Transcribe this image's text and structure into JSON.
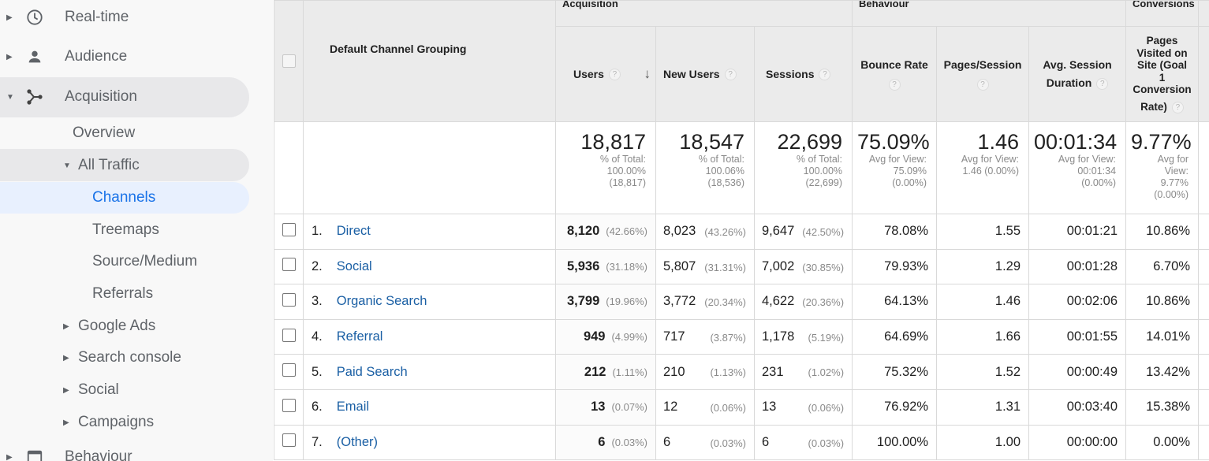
{
  "sidebar": {
    "top_items": [
      {
        "label": "Real-time",
        "icon": "clock-icon"
      },
      {
        "label": "Audience",
        "icon": "person-icon"
      },
      {
        "label": "Acquisition",
        "icon": "acquisition-icon"
      },
      {
        "label": "Behaviour",
        "icon": "behaviour-icon"
      }
    ],
    "overview": "Overview",
    "all_traffic": "All Traffic",
    "traffic_items": [
      "Channels",
      "Treemaps",
      "Source/Medium",
      "Referrals"
    ],
    "other_items": [
      "Google Ads",
      "Search console",
      "Social",
      "Campaigns"
    ]
  },
  "table": {
    "groups": {
      "acquisition": "Acquisition",
      "behaviour": "Behaviour",
      "conversions": "Conversions"
    },
    "headers": {
      "dimension": "Default Channel Grouping",
      "users": "Users",
      "new_users": "New Users",
      "sessions": "Sessions",
      "bounce_rate": "Bounce Rate",
      "pages_session": "Pages/Session",
      "avg_session_1": "Avg. Session",
      "avg_session_2": "Duration",
      "goal_1": "Pages",
      "goal_2": "Visited on",
      "goal_3": "Site (Goal",
      "goal_4": "1",
      "goal_5": "Conversion",
      "goal_6": "Rate)",
      "help": "?",
      "sort_arrow": "↓"
    },
    "totals": {
      "users": {
        "value": "18,817",
        "l1": "% of Total:",
        "l2": "100.00%",
        "l3": "(18,817)"
      },
      "new_users": {
        "value": "18,547",
        "l1": "% of Total:",
        "l2": "100.06%",
        "l3": "(18,536)"
      },
      "sessions": {
        "value": "22,699",
        "l1": "% of Total:",
        "l2": "100.00%",
        "l3": "(22,699)"
      },
      "bounce_rate": {
        "value": "75.09%",
        "l1": "Avg for View:",
        "l2": "75.09%",
        "l3": "(0.00%)"
      },
      "pages_session": {
        "value": "1.46",
        "l1": "Avg for View:",
        "l2": "1.46 (0.00%)",
        "l3": ""
      },
      "avg_duration": {
        "value": "00:01:34",
        "l1": "Avg for View:",
        "l2": "00:01:34",
        "l3": "(0.00%)"
      },
      "goal_rate": {
        "value": "9.77%",
        "l1": "Avg for",
        "l2": "View:",
        "l3": "9.77%",
        "l4": "(0.00%)"
      }
    },
    "rows": [
      {
        "idx": "1.",
        "channel": "Direct",
        "users": "8,120",
        "users_pct": "(42.66%)",
        "new_users": "8,023",
        "new_users_pct": "(43.26%)",
        "sessions": "9,647",
        "sessions_pct": "(42.50%)",
        "bounce": "78.08%",
        "pages": "1.55",
        "duration": "00:01:21",
        "goal": "10.86%"
      },
      {
        "idx": "2.",
        "channel": "Social",
        "users": "5,936",
        "users_pct": "(31.18%)",
        "new_users": "5,807",
        "new_users_pct": "(31.31%)",
        "sessions": "7,002",
        "sessions_pct": "(30.85%)",
        "bounce": "79.93%",
        "pages": "1.29",
        "duration": "00:01:28",
        "goal": "6.70%"
      },
      {
        "idx": "3.",
        "channel": "Organic Search",
        "users": "3,799",
        "users_pct": "(19.96%)",
        "new_users": "3,772",
        "new_users_pct": "(20.34%)",
        "sessions": "4,622",
        "sessions_pct": "(20.36%)",
        "bounce": "64.13%",
        "pages": "1.46",
        "duration": "00:02:06",
        "goal": "10.86%"
      },
      {
        "idx": "4.",
        "channel": "Referral",
        "users": "949",
        "users_pct": "(4.99%)",
        "new_users": "717",
        "new_users_pct": "(3.87%)",
        "sessions": "1,178",
        "sessions_pct": "(5.19%)",
        "bounce": "64.69%",
        "pages": "1.66",
        "duration": "00:01:55",
        "goal": "14.01%"
      },
      {
        "idx": "5.",
        "channel": "Paid Search",
        "users": "212",
        "users_pct": "(1.11%)",
        "new_users": "210",
        "new_users_pct": "(1.13%)",
        "sessions": "231",
        "sessions_pct": "(1.02%)",
        "bounce": "75.32%",
        "pages": "1.52",
        "duration": "00:00:49",
        "goal": "13.42%"
      },
      {
        "idx": "6.",
        "channel": "Email",
        "users": "13",
        "users_pct": "(0.07%)",
        "new_users": "12",
        "new_users_pct": "(0.06%)",
        "sessions": "13",
        "sessions_pct": "(0.06%)",
        "bounce": "76.92%",
        "pages": "1.31",
        "duration": "00:03:40",
        "goal": "15.38%"
      },
      {
        "idx": "7.",
        "channel": "(Other)",
        "users": "6",
        "users_pct": "(0.03%)",
        "new_users": "6",
        "new_users_pct": "(0.03%)",
        "sessions": "6",
        "sessions_pct": "(0.03%)",
        "bounce": "100.00%",
        "pages": "1.00",
        "duration": "00:00:00",
        "goal": "0.00%"
      }
    ]
  },
  "colors": {
    "link": "#1a5fa4",
    "active": "#1a73e8",
    "header_bg": "#ebebeb",
    "sidebar_bg": "#f8f8f8"
  }
}
